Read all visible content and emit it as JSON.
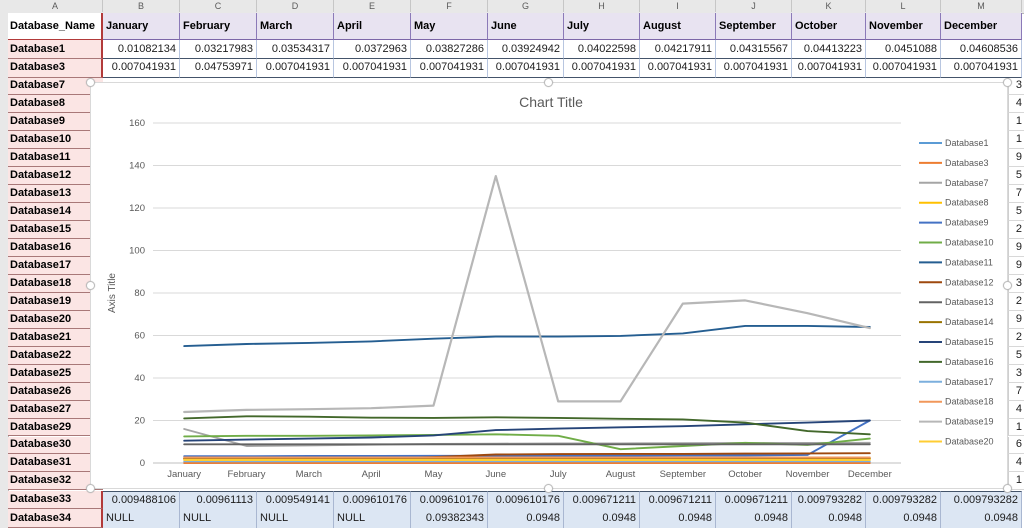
{
  "app": {
    "kind": "spreadsheet-with-chart"
  },
  "sheet": {
    "column_letters": [
      "A",
      "B",
      "C",
      "D",
      "E",
      "F",
      "G",
      "H",
      "I",
      "J",
      "K",
      "L",
      "M"
    ],
    "corner_label": "Database_Name",
    "columns": [
      "January",
      "February",
      "March",
      "April",
      "May",
      "June",
      "July",
      "August",
      "September",
      "October",
      "November",
      "December"
    ],
    "rows_top": [
      {
        "label": "Database1",
        "values": [
          "0.01082134",
          "0.03217983",
          "0.03534317",
          "0.0372963",
          "0.03827286",
          "0.03924942",
          "0.04022598",
          "0.04217911",
          "0.04315567",
          "0.04413223",
          "0.0451088",
          "0.04608536"
        ]
      },
      {
        "label": "Database3",
        "values": [
          "0.007041931",
          "0.04753971",
          "0.007041931",
          "0.007041931",
          "0.007041931",
          "0.007041931",
          "0.007041931",
          "0.007041931",
          "0.007041931",
          "0.007041931",
          "0.007041931",
          "0.007041931"
        ]
      }
    ],
    "row_labels_mid": [
      "Database7",
      "Database8",
      "Database9",
      "Database10",
      "Database11",
      "Database12",
      "Database13",
      "Database14",
      "Database15",
      "Database16",
      "Database17",
      "Database18",
      "Database19",
      "Database20",
      "Database21",
      "Database22",
      "Database25",
      "Database26",
      "Database27",
      "Database29",
      "Database30",
      "Database31",
      "Database32"
    ],
    "right_sliver_digits": [
      "3",
      "4",
      "1",
      "1",
      "9",
      "5",
      "7",
      "5",
      "2",
      "9",
      "9",
      "3",
      "2",
      "9",
      "2",
      "5",
      "3",
      "7",
      "4",
      "1",
      "6",
      "4",
      "1"
    ],
    "rows_bottom": [
      {
        "label": "Database33",
        "values": [
          "0.009488106",
          "0.00961113",
          "0.009549141",
          "0.009610176",
          "0.009610176",
          "0.009610176",
          "0.009671211",
          "0.009671211",
          "0.009671211",
          "0.009793282",
          "0.009793282",
          "0.009793282"
        ]
      },
      {
        "label": "Database34",
        "values": [
          "NULL",
          "NULL",
          "NULL",
          "NULL",
          "0.09382343",
          "0.0948",
          "0.0948",
          "0.0948",
          "0.0948",
          "0.0948",
          "0.0948",
          "0.0948"
        ]
      }
    ]
  },
  "chart_data": {
    "type": "line",
    "title": "Chart Title",
    "axis_title": "Axis Title",
    "legend_position": "right",
    "grid": true,
    "ylim": [
      0,
      160
    ],
    "ytick_step": 20,
    "colors": {
      "title_text": "#595959",
      "gridline": "#d9d9d9",
      "axis_line": "#bfbfbf"
    },
    "categories": [
      "January",
      "February",
      "March",
      "April",
      "May",
      "June",
      "July",
      "August",
      "September",
      "October",
      "November",
      "December"
    ],
    "series": [
      {
        "name": "Database1",
        "color": "#5B9BD5",
        "values": [
          0.011,
          0.032,
          0.035,
          0.037,
          0.038,
          0.039,
          0.04,
          0.042,
          0.043,
          0.044,
          0.045,
          0.046
        ]
      },
      {
        "name": "Database3",
        "color": "#ED7D31",
        "values": [
          0.007,
          0.048,
          0.007,
          0.007,
          0.007,
          0.007,
          0.007,
          0.007,
          0.007,
          0.007,
          0.007,
          0.007
        ]
      },
      {
        "name": "Database7",
        "color": "#A5A5A5",
        "values": [
          16,
          8,
          8.3,
          8.6,
          9,
          9.1,
          9.2,
          9.2,
          9.3,
          9.4,
          9.4,
          9.5
        ]
      },
      {
        "name": "Database8",
        "color": "#FFC000",
        "values": [
          1.9,
          1.9,
          1.9,
          1.9,
          1.9,
          1.9,
          1.9,
          1.9,
          1.9,
          1.9,
          1.9,
          1.9
        ]
      },
      {
        "name": "Database9",
        "color": "#4472C4",
        "values": [
          3.2,
          3.2,
          3.3,
          3.3,
          3.4,
          3.4,
          3.5,
          3.5,
          3.6,
          3.6,
          3.8,
          20
        ]
      },
      {
        "name": "Database10",
        "color": "#70AD47",
        "values": [
          12.5,
          12.8,
          12.8,
          13,
          13.2,
          13.5,
          12.8,
          6.5,
          8,
          9.5,
          8.5,
          11.5
        ]
      },
      {
        "name": "Database11",
        "color": "#255E91",
        "values": [
          55,
          56,
          56.5,
          57.2,
          58.5,
          59.5,
          59.5,
          59.8,
          61,
          64.5,
          64.5,
          64
        ]
      },
      {
        "name": "Database12",
        "color": "#9E480E",
        "values": [
          2,
          2,
          2.1,
          2.1,
          2.8,
          4,
          4.2,
          4.3,
          4.3,
          4.4,
          4.5,
          4.6
        ]
      },
      {
        "name": "Database13",
        "color": "#636363",
        "values": [
          8.8,
          8.8,
          8.8,
          8.8,
          8.8,
          8.8,
          8.8,
          8.8,
          8.8,
          8.8,
          8.8,
          8.8
        ]
      },
      {
        "name": "Database14",
        "color": "#997300",
        "values": [
          2.3,
          2.3,
          2.3,
          2.3,
          2.3,
          2.3,
          2.3,
          2.3,
          2.3,
          2.3,
          2.3,
          2.3
        ]
      },
      {
        "name": "Database15",
        "color": "#264478",
        "values": [
          10.5,
          11,
          11.5,
          12,
          13,
          15.5,
          16.2,
          16.8,
          17.3,
          18.2,
          19,
          20
        ]
      },
      {
        "name": "Database16",
        "color": "#43682B",
        "values": [
          21,
          22,
          21.8,
          21.3,
          21.2,
          21.5,
          21.2,
          20.8,
          20.5,
          19,
          15,
          13.5
        ]
      },
      {
        "name": "Database17",
        "color": "#7CAFDD",
        "values": [
          0.8,
          0.8,
          0.8,
          0.8,
          0.8,
          0.8,
          0.8,
          0.8,
          0.8,
          0.8,
          0.8,
          0.8
        ]
      },
      {
        "name": "Database18",
        "color": "#F1975A",
        "values": [
          2.6,
          2.6,
          2.6,
          2.6,
          2.6,
          2.6,
          2.6,
          2.6,
          2.6,
          2.6,
          2.6,
          2.6
        ]
      },
      {
        "name": "Database19",
        "color": "#B7B7B7",
        "values": [
          24,
          25,
          25.3,
          25.8,
          27,
          135,
          29,
          29,
          75,
          76.5,
          70.5,
          63.5
        ]
      },
      {
        "name": "Database20",
        "color": "#FFCD33",
        "values": [
          1.4,
          1.4,
          1.4,
          1.4,
          1.4,
          1.4,
          1.4,
          1.4,
          1.4,
          1.4,
          1.4,
          1.4
        ]
      }
    ]
  }
}
